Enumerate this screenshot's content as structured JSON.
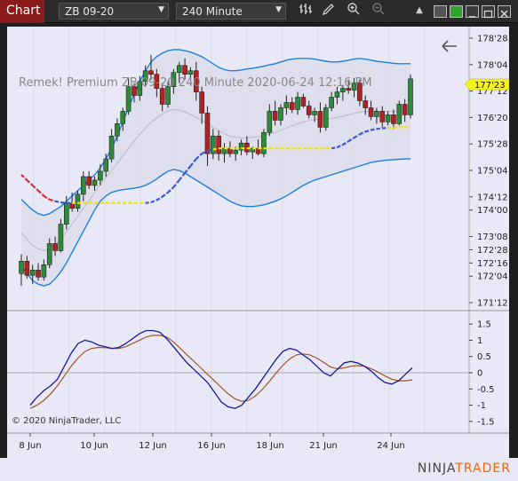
{
  "toolbar": {
    "chart_tab": "Chart",
    "instrument": "ZB 09-20",
    "interval": "240 Minute"
  },
  "chart": {
    "overlay_label": "Remek!  Premium  ZB 09-20  240 Minute  2020-06-24 12:16 PM",
    "copyright": "© 2020 NinjaTrader, LLC",
    "current_price": "177'23",
    "brand_prefix": "NINJA",
    "brand_suffix": "TRADER",
    "colors": {
      "bull": "#2e8b3a",
      "bear": "#b22222",
      "band": "#1e7fe0",
      "trend_red": "#d42a3c",
      "trend_blue": "#3a58d8",
      "trend_yellow": "#f0e010",
      "price_tag": "#f5f51a",
      "osc1": "#1a1a9a",
      "osc2": "#a0562a"
    }
  },
  "chart_data": {
    "type": "candlestick",
    "price_axis_ticks": [
      "178'28",
      "178'04",
      "177'12",
      "176'20",
      "175'28",
      "175'04",
      "174'12",
      "174'00",
      "173'08",
      "172'28",
      "172'16",
      "172'04",
      "171'12"
    ],
    "oscillator_axis_ticks": [
      "1.5",
      "1",
      "0.5",
      "0",
      "-0.5",
      "-1",
      "-1.5"
    ],
    "x_ticks": [
      "8 Jun",
      "10 Jun",
      "12 Jun",
      "16 Jun",
      "18 Jun",
      "21 Jun",
      "24 Jun"
    ],
    "ohlc": [
      [
        172.2,
        172.75,
        171.85,
        172.55
      ],
      [
        172.55,
        172.7,
        172.05,
        172.15
      ],
      [
        172.15,
        172.45,
        171.9,
        172.3
      ],
      [
        172.3,
        172.5,
        172.0,
        172.1
      ],
      [
        172.1,
        172.6,
        172.0,
        172.45
      ],
      [
        172.45,
        173.2,
        172.35,
        173.05
      ],
      [
        173.05,
        173.25,
        172.7,
        172.85
      ],
      [
        172.85,
        173.75,
        172.8,
        173.6
      ],
      [
        173.6,
        174.4,
        173.45,
        174.2
      ],
      [
        174.2,
        174.5,
        173.95,
        174.05
      ],
      [
        174.05,
        174.55,
        173.95,
        174.45
      ],
      [
        174.45,
        175.1,
        174.25,
        174.95
      ],
      [
        174.95,
        175.1,
        174.6,
        174.7
      ],
      [
        174.7,
        174.95,
        174.55,
        174.85
      ],
      [
        174.85,
        175.3,
        174.7,
        175.1
      ],
      [
        175.1,
        175.6,
        174.95,
        175.45
      ],
      [
        175.45,
        176.3,
        175.35,
        176.1
      ],
      [
        176.1,
        176.6,
        175.95,
        176.45
      ],
      [
        176.45,
        176.9,
        176.25,
        176.8
      ],
      [
        176.8,
        177.75,
        176.7,
        177.5
      ],
      [
        177.5,
        177.6,
        177.05,
        177.25
      ],
      [
        177.25,
        177.8,
        177.1,
        177.65
      ],
      [
        177.65,
        178.1,
        177.5,
        177.95
      ],
      [
        177.95,
        178.4,
        177.7,
        177.85
      ],
      [
        177.85,
        178.0,
        177.2,
        177.45
      ],
      [
        177.45,
        177.6,
        176.8,
        177.0
      ],
      [
        177.0,
        177.65,
        176.9,
        177.5
      ],
      [
        177.5,
        178.0,
        177.3,
        177.9
      ],
      [
        177.9,
        178.2,
        177.6,
        178.1
      ],
      [
        178.1,
        178.3,
        177.7,
        177.85
      ],
      [
        177.85,
        178.05,
        177.6,
        177.95
      ],
      [
        177.95,
        178.2,
        177.1,
        177.35
      ],
      [
        177.35,
        177.5,
        176.45,
        176.75
      ],
      [
        176.75,
        176.95,
        175.25,
        175.6
      ],
      [
        175.6,
        176.3,
        175.45,
        176.1
      ],
      [
        176.1,
        176.25,
        175.4,
        175.6
      ],
      [
        175.6,
        175.9,
        175.35,
        175.75
      ],
      [
        175.75,
        175.95,
        175.5,
        175.6
      ],
      [
        175.6,
        175.8,
        175.4,
        175.7
      ],
      [
        175.7,
        176.0,
        175.55,
        175.9
      ],
      [
        175.9,
        176.1,
        175.55,
        175.65
      ],
      [
        175.65,
        175.8,
        175.45,
        175.75
      ],
      [
        175.75,
        176.0,
        175.55,
        175.6
      ],
      [
        175.6,
        176.3,
        175.5,
        176.2
      ],
      [
        176.2,
        177.0,
        176.1,
        176.8
      ],
      [
        176.8,
        177.1,
        176.4,
        176.55
      ],
      [
        176.55,
        177.0,
        176.4,
        176.9
      ],
      [
        176.9,
        177.25,
        176.7,
        177.05
      ],
      [
        177.05,
        177.2,
        176.75,
        176.85
      ],
      [
        176.85,
        177.35,
        176.7,
        177.2
      ],
      [
        177.2,
        177.3,
        176.9,
        176.95
      ],
      [
        176.95,
        177.1,
        176.6,
        176.7
      ],
      [
        176.7,
        176.9,
        176.5,
        176.8
      ],
      [
        176.8,
        177.05,
        176.2,
        176.35
      ],
      [
        176.35,
        177.0,
        176.25,
        176.9
      ],
      [
        176.9,
        177.35,
        176.8,
        177.2
      ],
      [
        177.2,
        177.5,
        177.0,
        177.35
      ],
      [
        177.35,
        177.55,
        177.1,
        177.45
      ],
      [
        177.45,
        177.7,
        177.3,
        177.4
      ],
      [
        177.4,
        177.75,
        177.2,
        177.6
      ],
      [
        177.6,
        177.7,
        176.95,
        177.1
      ],
      [
        177.1,
        177.25,
        176.7,
        176.9
      ],
      [
        176.9,
        177.1,
        176.55,
        176.65
      ],
      [
        176.65,
        176.9,
        176.45,
        176.8
      ],
      [
        176.8,
        176.95,
        176.35,
        176.5
      ],
      [
        176.5,
        176.8,
        176.4,
        176.7
      ],
      [
        176.7,
        176.85,
        176.3,
        176.45
      ],
      [
        176.45,
        177.1,
        176.4,
        177.0
      ],
      [
        177.0,
        177.15,
        176.5,
        176.7
      ],
      [
        176.7,
        177.85,
        176.6,
        177.72
      ]
    ],
    "upper_band": [
      174.3,
      174.15,
      174.0,
      173.9,
      173.85,
      173.9,
      174.0,
      174.1,
      174.25,
      174.4,
      174.55,
      174.7,
      174.85,
      175.0,
      175.2,
      175.45,
      175.75,
      176.1,
      176.5,
      176.9,
      177.3,
      177.65,
      177.95,
      178.2,
      178.35,
      178.45,
      178.52,
      178.55,
      178.55,
      178.52,
      178.48,
      178.42,
      178.35,
      178.25,
      178.15,
      178.05,
      177.98,
      177.95,
      177.95,
      177.97,
      178.0,
      178.02,
      178.05,
      178.08,
      178.12,
      178.15,
      178.2,
      178.25,
      178.28,
      178.3,
      178.3,
      178.3,
      178.28,
      178.25,
      178.22,
      178.2,
      178.2,
      178.22,
      178.25,
      178.28,
      178.3,
      178.28,
      178.25,
      178.22,
      178.2,
      178.18,
      178.16,
      178.15,
      178.15,
      178.15
    ],
    "lower_band": [
      172.4,
      172.2,
      172.0,
      171.9,
      171.85,
      171.9,
      172.05,
      172.25,
      172.5,
      172.8,
      173.1,
      173.4,
      173.7,
      174.0,
      174.25,
      174.4,
      174.5,
      174.55,
      174.58,
      174.6,
      174.62,
      174.65,
      174.7,
      174.78,
      174.88,
      175.0,
      175.1,
      175.15,
      175.12,
      175.05,
      174.95,
      174.85,
      174.75,
      174.65,
      174.55,
      174.45,
      174.35,
      174.25,
      174.18,
      174.12,
      174.1,
      174.1,
      174.12,
      174.15,
      174.2,
      174.25,
      174.32,
      174.4,
      174.5,
      174.6,
      174.7,
      174.78,
      174.85,
      174.9,
      174.95,
      175.0,
      175.05,
      175.1,
      175.15,
      175.2,
      175.25,
      175.3,
      175.35,
      175.38,
      175.4,
      175.42,
      175.43,
      175.44,
      175.45,
      175.45
    ],
    "trend_line": [
      175.0,
      174.85,
      174.7,
      174.55,
      174.4,
      174.3,
      174.25,
      174.22,
      174.2,
      174.2,
      174.2,
      174.2,
      174.2,
      174.2,
      174.2,
      174.2,
      174.2,
      174.2,
      174.2,
      174.2,
      174.2,
      174.2,
      174.2,
      174.22,
      174.28,
      174.38,
      174.5,
      174.65,
      174.85,
      175.05,
      175.25,
      175.45,
      175.6,
      175.68,
      175.72,
      175.75,
      175.75,
      175.75,
      175.75,
      175.75,
      175.75,
      175.75,
      175.75,
      175.75,
      175.75,
      175.75,
      175.75,
      175.75,
      175.75,
      175.75,
      175.75,
      175.75,
      175.75,
      175.75,
      175.75,
      175.75,
      175.78,
      175.85,
      175.95,
      176.05,
      176.15,
      176.22,
      176.27,
      176.3,
      176.32,
      176.33,
      176.34,
      176.35,
      176.35,
      176.35
    ],
    "trend_colors": [
      "red",
      "red",
      "red",
      "red",
      "red",
      "red",
      "blue",
      "blue",
      "blue",
      "yellow",
      "yellow",
      "yellow",
      "yellow",
      "yellow",
      "yellow",
      "yellow",
      "yellow",
      "yellow",
      "yellow",
      "yellow",
      "yellow",
      "yellow",
      "blue",
      "blue",
      "blue",
      "blue",
      "blue",
      "blue",
      "blue",
      "blue",
      "blue",
      "blue",
      "blue",
      "blue",
      "yellow",
      "yellow",
      "yellow",
      "yellow",
      "yellow",
      "yellow",
      "yellow",
      "yellow",
      "yellow",
      "yellow",
      "yellow",
      "yellow",
      "yellow",
      "yellow",
      "yellow",
      "yellow",
      "yellow",
      "yellow",
      "yellow",
      "yellow",
      "yellow",
      "blue",
      "blue",
      "blue",
      "blue",
      "blue",
      "blue",
      "blue",
      "blue",
      "blue",
      "blue",
      "yellow",
      "yellow",
      "yellow",
      "yellow",
      "yellow"
    ],
    "osc_line1": [
      -1.0,
      -0.75,
      -0.55,
      -0.4,
      -0.2,
      0.2,
      0.6,
      0.9,
      1.0,
      0.95,
      0.85,
      0.8,
      0.75,
      0.78,
      0.9,
      1.05,
      1.2,
      1.3,
      1.3,
      1.25,
      1.05,
      0.8,
      0.55,
      0.3,
      0.1,
      -0.1,
      -0.3,
      -0.6,
      -0.9,
      -1.05,
      -1.1,
      -1.0,
      -0.75,
      -0.5,
      -0.2,
      0.1,
      0.4,
      0.65,
      0.75,
      0.7,
      0.55,
      0.4,
      0.2,
      0.0,
      -0.1,
      0.1,
      0.3,
      0.35,
      0.3,
      0.2,
      0.05,
      -0.15,
      -0.3,
      -0.35,
      -0.25,
      -0.05,
      0.15
    ],
    "osc_line2": [
      -1.1,
      -1.0,
      -0.85,
      -0.65,
      -0.4,
      -0.1,
      0.2,
      0.45,
      0.65,
      0.75,
      0.78,
      0.77,
      0.75,
      0.75,
      0.8,
      0.9,
      1.0,
      1.1,
      1.15,
      1.15,
      1.1,
      0.95,
      0.75,
      0.55,
      0.35,
      0.15,
      -0.05,
      -0.25,
      -0.45,
      -0.65,
      -0.8,
      -0.88,
      -0.85,
      -0.72,
      -0.52,
      -0.28,
      -0.02,
      0.22,
      0.42,
      0.55,
      0.58,
      0.55,
      0.45,
      0.32,
      0.18,
      0.12,
      0.15,
      0.2,
      0.22,
      0.2,
      0.12,
      0.02,
      -0.1,
      -0.2,
      -0.25,
      -0.25,
      -0.22
    ]
  }
}
